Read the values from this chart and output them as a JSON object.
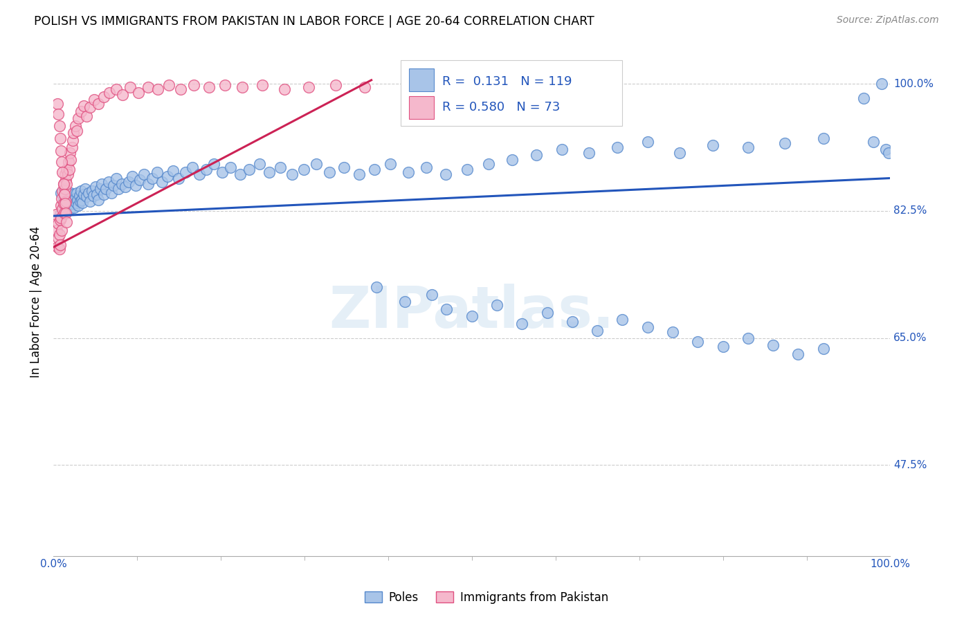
{
  "title": "POLISH VS IMMIGRANTS FROM PAKISTAN IN LABOR FORCE | AGE 20-64 CORRELATION CHART",
  "source": "Source: ZipAtlas.com",
  "ylabel": "In Labor Force | Age 20-64",
  "watermark": "ZIPatlas.",
  "xlim": [
    0.0,
    1.0
  ],
  "ylim": [
    0.35,
    1.05
  ],
  "yticks": [
    0.475,
    0.65,
    0.825,
    1.0
  ],
  "ytick_labels": [
    "47.5%",
    "65.0%",
    "82.5%",
    "100.0%"
  ],
  "xtick_labels": [
    "0.0%",
    "100.0%"
  ],
  "xtick_vals": [
    0.0,
    1.0
  ],
  "blue_fill": "#a8c4e8",
  "blue_edge": "#5588cc",
  "pink_fill": "#f5b8cc",
  "pink_edge": "#e05080",
  "trend_blue": "#2255bb",
  "trend_pink": "#cc2255",
  "label_blue": "#2255bb",
  "legend_R_blue": "0.131",
  "legend_N_blue": "119",
  "legend_R_pink": "0.580",
  "legend_N_pink": "73",
  "blue_trend_x0": 0.0,
  "blue_trend_x1": 1.0,
  "blue_trend_y0": 0.818,
  "blue_trend_y1": 0.87,
  "pink_trend_x0": 0.0,
  "pink_trend_x1": 0.38,
  "pink_trend_y0": 0.775,
  "pink_trend_y1": 1.005,
  "poles_x": [
    0.008,
    0.009,
    0.012,
    0.013,
    0.015,
    0.016,
    0.018,
    0.019,
    0.02,
    0.021,
    0.022,
    0.023,
    0.024,
    0.025,
    0.026,
    0.027,
    0.028,
    0.029,
    0.03,
    0.031,
    0.032,
    0.033,
    0.034,
    0.035,
    0.036,
    0.038,
    0.04,
    0.042,
    0.044,
    0.046,
    0.048,
    0.05,
    0.052,
    0.054,
    0.056,
    0.058,
    0.06,
    0.063,
    0.066,
    0.069,
    0.072,
    0.075,
    0.078,
    0.082,
    0.086,
    0.09,
    0.094,
    0.098,
    0.103,
    0.108,
    0.113,
    0.118,
    0.124,
    0.13,
    0.136,
    0.143,
    0.15,
    0.158,
    0.166,
    0.174,
    0.183,
    0.192,
    0.202,
    0.212,
    0.223,
    0.234,
    0.246,
    0.258,
    0.271,
    0.285,
    0.299,
    0.314,
    0.33,
    0.347,
    0.365,
    0.384,
    0.403,
    0.424,
    0.446,
    0.469,
    0.494,
    0.52,
    0.548,
    0.577,
    0.608,
    0.64,
    0.674,
    0.71,
    0.748,
    0.788,
    0.83,
    0.874,
    0.92,
    0.968,
    0.98,
    0.99,
    0.995,
    0.998,
    0.386,
    0.42,
    0.452,
    0.47,
    0.5,
    0.53,
    0.56,
    0.59,
    0.62,
    0.65,
    0.68,
    0.71,
    0.74,
    0.77,
    0.8,
    0.83,
    0.86,
    0.89,
    0.92
  ],
  "poles_y": [
    0.82,
    0.85,
    0.84,
    0.825,
    0.838,
    0.83,
    0.845,
    0.835,
    0.828,
    0.85,
    0.84,
    0.835,
    0.848,
    0.83,
    0.842,
    0.836,
    0.85,
    0.84,
    0.832,
    0.846,
    0.838,
    0.852,
    0.84,
    0.836,
    0.848,
    0.855,
    0.845,
    0.85,
    0.838,
    0.852,
    0.846,
    0.858,
    0.848,
    0.84,
    0.855,
    0.862,
    0.848,
    0.855,
    0.865,
    0.85,
    0.86,
    0.87,
    0.855,
    0.862,
    0.858,
    0.865,
    0.872,
    0.86,
    0.868,
    0.875,
    0.862,
    0.87,
    0.878,
    0.865,
    0.872,
    0.88,
    0.87,
    0.878,
    0.885,
    0.875,
    0.882,
    0.89,
    0.878,
    0.885,
    0.875,
    0.882,
    0.89,
    0.878,
    0.885,
    0.875,
    0.882,
    0.89,
    0.878,
    0.885,
    0.875,
    0.882,
    0.89,
    0.878,
    0.885,
    0.875,
    0.882,
    0.89,
    0.895,
    0.902,
    0.91,
    0.905,
    0.912,
    0.92,
    0.905,
    0.915,
    0.912,
    0.918,
    0.925,
    0.98,
    0.92,
    1.0,
    0.91,
    0.905,
    0.72,
    0.7,
    0.71,
    0.69,
    0.68,
    0.695,
    0.67,
    0.685,
    0.672,
    0.66,
    0.675,
    0.665,
    0.658,
    0.645,
    0.638,
    0.65,
    0.64,
    0.628,
    0.635
  ],
  "pakistan_x": [
    0.003,
    0.004,
    0.005,
    0.006,
    0.006,
    0.007,
    0.007,
    0.008,
    0.008,
    0.009,
    0.009,
    0.01,
    0.01,
    0.011,
    0.011,
    0.012,
    0.012,
    0.013,
    0.013,
    0.014,
    0.014,
    0.015,
    0.015,
    0.016,
    0.016,
    0.017,
    0.018,
    0.019,
    0.02,
    0.021,
    0.022,
    0.023,
    0.024,
    0.026,
    0.028,
    0.03,
    0.033,
    0.036,
    0.04,
    0.044,
    0.049,
    0.054,
    0.06,
    0.067,
    0.075,
    0.083,
    0.092,
    0.102,
    0.113,
    0.125,
    0.138,
    0.152,
    0.168,
    0.186,
    0.205,
    0.226,
    0.25,
    0.276,
    0.305,
    0.337,
    0.372,
    0.005,
    0.006,
    0.007,
    0.008,
    0.009,
    0.01,
    0.011,
    0.012,
    0.013,
    0.014,
    0.015,
    0.016
  ],
  "pakistan_y": [
    0.82,
    0.798,
    0.775,
    0.808,
    0.788,
    0.772,
    0.792,
    0.812,
    0.778,
    0.832,
    0.815,
    0.798,
    0.842,
    0.852,
    0.828,
    0.862,
    0.835,
    0.848,
    0.822,
    0.875,
    0.855,
    0.868,
    0.838,
    0.882,
    0.862,
    0.875,
    0.892,
    0.882,
    0.905,
    0.895,
    0.912,
    0.922,
    0.932,
    0.942,
    0.935,
    0.952,
    0.962,
    0.97,
    0.955,
    0.968,
    0.978,
    0.972,
    0.982,
    0.988,
    0.992,
    0.985,
    0.995,
    0.988,
    0.995,
    0.992,
    0.998,
    0.992,
    0.998,
    0.995,
    0.998,
    0.995,
    0.998,
    0.992,
    0.995,
    0.998,
    0.995,
    0.972,
    0.958,
    0.942,
    0.925,
    0.908,
    0.892,
    0.878,
    0.862,
    0.848,
    0.835,
    0.822,
    0.81
  ]
}
